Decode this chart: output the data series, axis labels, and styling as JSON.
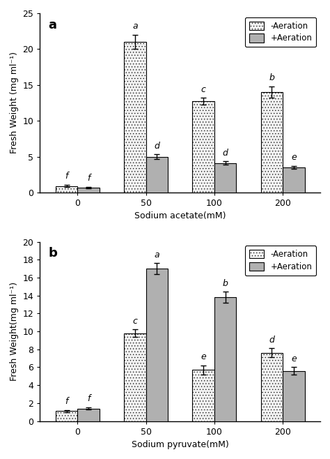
{
  "panel_a": {
    "title": "a",
    "xlabel": "Sodium acetate(mM)",
    "ylabel": "Fresh Weight (mg ml⁻¹)",
    "ylim": [
      0,
      25
    ],
    "yticks": [
      0,
      5,
      10,
      15,
      20,
      25
    ],
    "categories": [
      0,
      50,
      100,
      200
    ],
    "no_aeration_values": [
      0.9,
      21.0,
      12.7,
      14.0
    ],
    "no_aeration_errors": [
      0.15,
      1.0,
      0.5,
      0.8
    ],
    "aeration_values": [
      0.7,
      5.0,
      4.1,
      3.5
    ],
    "aeration_errors": [
      0.1,
      0.3,
      0.25,
      0.2
    ],
    "no_aeration_labels": [
      "f",
      "a",
      "c",
      "b"
    ],
    "aeration_labels": [
      "f",
      "d",
      "d",
      "e"
    ]
  },
  "panel_b": {
    "title": "b",
    "xlabel": "Sodium pyruvate(mM)",
    "ylabel": "Fresh Weight(mg ml⁻¹)",
    "ylim": [
      0,
      20
    ],
    "yticks": [
      0,
      2,
      4,
      6,
      8,
      10,
      12,
      14,
      16,
      18,
      20
    ],
    "categories": [
      0,
      50,
      100,
      200
    ],
    "no_aeration_values": [
      1.1,
      9.8,
      5.7,
      7.6
    ],
    "no_aeration_errors": [
      0.1,
      0.4,
      0.5,
      0.5
    ],
    "aeration_values": [
      1.4,
      17.0,
      13.8,
      5.6
    ],
    "aeration_errors": [
      0.15,
      0.6,
      0.6,
      0.4
    ],
    "no_aeration_labels": [
      "f",
      "c",
      "e",
      "d"
    ],
    "aeration_labels": [
      "f",
      "a",
      "b",
      "e"
    ]
  },
  "bar_width": 0.32,
  "no_aeration_facecolor": "#f0f0f0",
  "aeration_facecolor": "#b0b0b0",
  "background_color": "#ffffff",
  "legend_no_aeration": "-Aeration",
  "legend_aeration": "+Aeration",
  "label_fontsize": 9,
  "tick_fontsize": 9,
  "title_fontsize": 13,
  "annot_fontsize": 9
}
